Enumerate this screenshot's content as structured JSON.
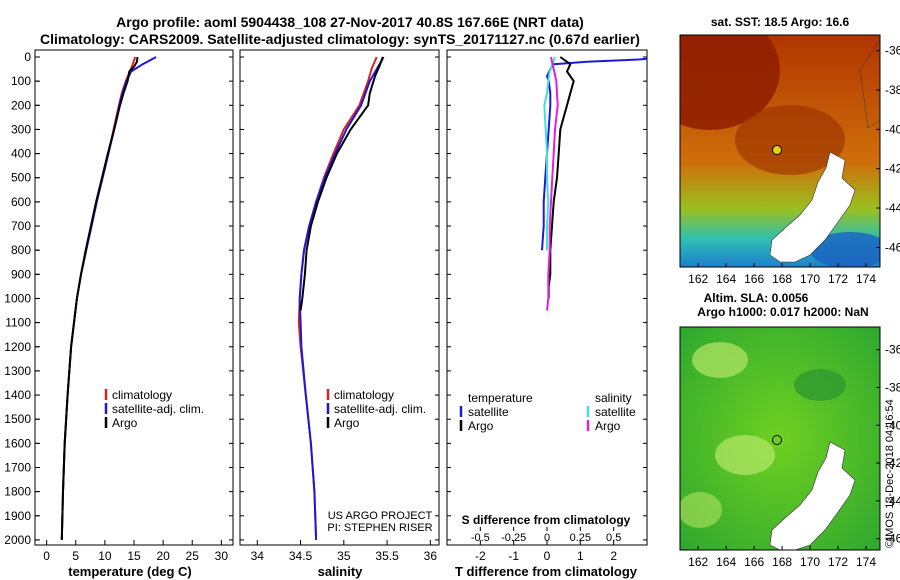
{
  "title": "Argo profile: aoml 5904438_108 27-Nov-2017 40.8S 167.66E (NRT data)",
  "subtitle": "Climatology: CARS2009. Satellite-adjusted climatology: synTS_20171127.nc (0.67d earlier)",
  "stamp": "©IMOS 13-Dec-2018 04:16:54",
  "credits": {
    "project": "US ARGO PROJECT",
    "pi": "PI: STEPHEN RISER"
  },
  "colors": {
    "climatology": "#e02020",
    "satellite": "#1a1adc",
    "argo": "#000000",
    "sat_sal": "#40e0e0",
    "argo_sal": "#e020e0"
  },
  "depth_axis": {
    "range": [
      0,
      2050
    ],
    "ticks": [
      0,
      100,
      200,
      300,
      400,
      500,
      600,
      700,
      800,
      900,
      1000,
      1100,
      1200,
      1300,
      1400,
      1500,
      1600,
      1700,
      1800,
      1900,
      2000
    ]
  },
  "chart_data": [
    {
      "type": "line",
      "title": "temperature",
      "xlabel": "temperature (deg C)",
      "ylabel": "depth",
      "xlim": [
        -2,
        32
      ],
      "xticks": [
        0,
        5,
        10,
        15,
        20,
        25,
        30
      ],
      "legend": [
        "climatology",
        "satellite-adj. clim.",
        "Argo"
      ],
      "series": [
        {
          "name": "climatology",
          "color_key": "climatology",
          "depth": [
            0,
            30,
            60,
            100,
            150,
            200,
            300,
            400,
            500,
            600,
            700,
            800,
            900,
            1000,
            1200,
            1400,
            1600,
            1800,
            2000
          ],
          "values": [
            15.2,
            14.8,
            14.3,
            13.6,
            12.9,
            12.4,
            11.5,
            10.6,
            9.6,
            8.6,
            7.7,
            6.8,
            5.9,
            5.2,
            4.2,
            3.6,
            3.1,
            2.8,
            2.6
          ]
        },
        {
          "name": "satellite-adj. clim.",
          "color_key": "satellite",
          "depth": [
            0,
            30,
            60,
            100,
            150,
            200,
            300,
            400,
            500,
            600,
            700,
            800,
            900,
            1000,
            1200,
            1400,
            1600,
            1800,
            2000
          ],
          "values": [
            18.8,
            16.5,
            14.5,
            13.7,
            13.0,
            12.5,
            11.6,
            10.6,
            9.6,
            8.6,
            7.7,
            6.8,
            5.9,
            5.2,
            4.2,
            3.6,
            3.1,
            2.8,
            2.6
          ]
        },
        {
          "name": "Argo",
          "color_key": "argo",
          "depth": [
            0,
            20,
            40,
            60,
            100,
            150,
            200,
            300,
            400,
            500,
            600,
            700,
            800,
            900,
            1000,
            1200,
            1400,
            1600,
            1800,
            2000
          ],
          "values": [
            15.6,
            15.5,
            15.0,
            14.2,
            13.9,
            13.2,
            12.6,
            11.6,
            10.5,
            9.5,
            8.5,
            7.6,
            6.7,
            5.9,
            5.2,
            4.2,
            3.6,
            3.1,
            2.8,
            2.6
          ]
        }
      ]
    },
    {
      "type": "line",
      "title": "salinity",
      "xlabel": "salinity",
      "ylabel": "depth",
      "xlim": [
        33.8,
        36.1
      ],
      "xticks": [
        34,
        34.5,
        35,
        35.5,
        36
      ],
      "legend": [
        "climatology",
        "satellite-adj. clim.",
        "Argo"
      ],
      "series": [
        {
          "name": "climatology",
          "color_key": "climatology",
          "depth": [
            0,
            50,
            100,
            200,
            300,
            400,
            500,
            600,
            700,
            800,
            900,
            1000,
            1100,
            1200,
            1400,
            1600,
            1800,
            2000
          ],
          "values": [
            35.38,
            35.32,
            35.28,
            35.18,
            35.0,
            34.88,
            34.77,
            34.68,
            34.6,
            34.54,
            34.51,
            34.49,
            34.48,
            34.5,
            34.56,
            34.62,
            34.66,
            34.68
          ]
        },
        {
          "name": "satellite-adj. clim.",
          "color_key": "satellite",
          "depth": [
            0,
            50,
            100,
            200,
            300,
            400,
            500,
            600,
            700,
            800,
            900,
            1000,
            1100,
            1200,
            1400,
            1600,
            1800,
            2000
          ],
          "values": [
            35.46,
            35.38,
            35.3,
            35.2,
            35.03,
            34.9,
            34.78,
            34.68,
            34.6,
            34.54,
            34.51,
            34.49,
            34.5,
            34.51,
            34.56,
            34.62,
            34.66,
            34.68
          ]
        },
        {
          "name": "Argo",
          "color_key": "argo",
          "depth": [
            0,
            30,
            80,
            150,
            200,
            300,
            400,
            500,
            600,
            700,
            800,
            900,
            1000,
            1050
          ],
          "values": [
            35.45,
            35.42,
            35.36,
            35.3,
            35.28,
            35.08,
            34.92,
            34.8,
            34.7,
            34.62,
            34.57,
            34.55,
            34.52,
            34.5
          ]
        }
      ]
    },
    {
      "type": "line",
      "title": "difference from climatology",
      "xlabel": "T difference from climatology",
      "s_axis_label": "S difference from climatology",
      "xlim": [
        -3,
        3
      ],
      "xticks": [
        -2,
        -1,
        0,
        1,
        2
      ],
      "s_xlim": [
        -0.75,
        0.75
      ],
      "s_ticks": [
        -0.5,
        -0.25,
        0,
        0.25,
        0.5
      ],
      "s_tick_labels": [
        "-0.5",
        "-0.25",
        "0",
        "0.25",
        "0.5"
      ],
      "legend_left": {
        "header": "temperature",
        "items": [
          "satellite",
          "Argo"
        ]
      },
      "legend_right": {
        "header": "salinity",
        "items": [
          "satellite",
          "Argo"
        ]
      },
      "series": [
        {
          "name": "T satellite",
          "color_key": "satellite",
          "axis": "T",
          "depth": [
            0,
            10,
            20,
            30,
            50,
            80,
            100,
            150,
            200,
            300,
            400,
            500,
            600,
            700,
            800
          ],
          "values": [
            3.5,
            2.8,
            1.2,
            0.2,
            0.1,
            0.0,
            0.05,
            0.1,
            0.1,
            0.05,
            0.0,
            -0.05,
            -0.1,
            -0.1,
            -0.15
          ]
        },
        {
          "name": "T Argo",
          "color_key": "argo",
          "axis": "T",
          "depth": [
            0,
            30,
            60,
            100,
            150,
            200,
            300,
            400,
            500,
            600,
            700,
            800,
            900,
            950,
            1000
          ],
          "values": [
            0.4,
            0.7,
            0.6,
            0.8,
            0.7,
            0.6,
            0.4,
            0.35,
            0.3,
            0.2,
            0.15,
            0.1,
            0.1,
            0.05,
            0.05
          ]
        },
        {
          "name": "S satellite",
          "color_key": "sat_sal",
          "axis": "S",
          "depth": [
            0,
            30,
            60,
            100,
            150,
            200,
            300,
            400,
            500,
            600,
            700,
            800
          ],
          "values": [
            0.06,
            0.04,
            0.02,
            0.01,
            0.0,
            -0.02,
            -0.01,
            0.0,
            0.0,
            0.01,
            0.0,
            0.0
          ]
        },
        {
          "name": "S Argo",
          "color_key": "argo_sal",
          "axis": "S",
          "depth": [
            0,
            50,
            100,
            200,
            300,
            400,
            500,
            600,
            700,
            800,
            900,
            1000,
            1050
          ],
          "values": [
            0.03,
            0.05,
            0.07,
            0.08,
            0.06,
            0.05,
            0.04,
            0.03,
            0.02,
            0.02,
            0.01,
            0.01,
            0.0
          ]
        }
      ]
    }
  ],
  "map_sst": {
    "title": "sat. SST: 18.5 Argo: 16.6",
    "lat_ticks": [
      -36,
      -38,
      -40,
      -42,
      -44,
      -46
    ],
    "lon_ticks": [
      162,
      164,
      166,
      168,
      170,
      172,
      174
    ],
    "lat_range": [
      -35.2,
      -47.0
    ],
    "lon_range": [
      160.7,
      175.0
    ]
  },
  "map_sla": {
    "title": "Altim. SLA: 0.0056",
    "subtitle": "Argo h1000: 0.017 h2000: NaN",
    "lat_ticks": [
      -36,
      -38,
      -40,
      -42,
      -44,
      -46
    ],
    "lon_ticks": [
      162,
      164,
      166,
      168,
      170,
      172,
      174
    ],
    "lat_range": [
      -34.8,
      -46.6
    ],
    "lon_range": [
      160.7,
      175.0
    ]
  }
}
